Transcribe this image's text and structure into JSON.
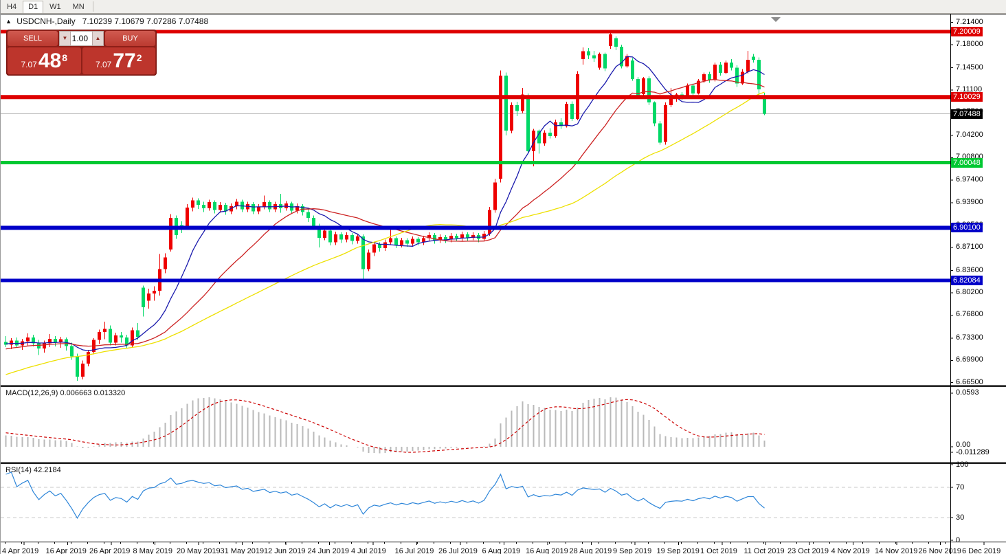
{
  "toolbar": {
    "timeframes": [
      {
        "id": "h4",
        "label": "H4",
        "active": false
      },
      {
        "id": "d1",
        "label": "D1",
        "active": true
      },
      {
        "id": "w1",
        "label": "W1",
        "active": false
      },
      {
        "id": "mn",
        "label": "MN",
        "active": false
      }
    ]
  },
  "chart": {
    "title_symbol": "USDCNH-,Daily",
    "title_ohlc": "7.10239 7.10679 7.07286 7.07488",
    "trade_panel": {
      "sell_label": "SELL",
      "buy_label": "BUY",
      "volume": "1.00",
      "down_arrow": "▼",
      "up_arrow": "▲",
      "sell_price_small": "7.07",
      "sell_price_big": "48",
      "sell_price_sup": "8",
      "buy_price_small": "7.07",
      "buy_price_big": "77",
      "buy_price_sup": "2"
    },
    "axis_ticks": [
      "7.21400",
      "7.18000",
      "7.14500",
      "7.11100",
      "7.07700",
      "7.04200",
      "7.00800",
      "6.97400",
      "6.93900",
      "6.90500",
      "6.87100",
      "6.83600",
      "6.80200",
      "6.76800",
      "6.73300",
      "6.69900",
      "6.66500"
    ],
    "hlines": [
      {
        "label": "7.20009",
        "price": 7.20009,
        "color": "#de0000",
        "thickness": 5
      },
      {
        "label": "7.10029",
        "price": 7.10029,
        "color": "#de0000",
        "thickness": 6
      },
      {
        "label": "7.00048",
        "price": 7.00048,
        "color": "#00c832",
        "thickness": 5
      },
      {
        "label": "6.90100",
        "price": 6.901,
        "color": "#0000c8",
        "thickness": 6
      },
      {
        "label": "6.82084",
        "price": 6.82084,
        "color": "#0000c8",
        "thickness": 5
      }
    ],
    "current_price": {
      "label": "7.07488",
      "price": 7.07488
    },
    "time_labels": [
      "4 Apr 2019",
      "16 Apr 2019",
      "26 Apr 2019",
      "8 May 2019",
      "20 May 2019",
      "31 May 2019",
      "12 Jun 2019",
      "24 Jun 2019",
      "4 Jul 2019",
      "16 Jul 2019",
      "26 Jul 2019",
      "6 Aug 2019",
      "16 Aug 2019",
      "28 Aug 2019",
      "9 Sep 2019",
      "19 Sep 2019",
      "1 Oct 2019",
      "11 Oct 2019",
      "23 Oct 2019",
      "4 Nov 2019",
      "14 Nov 2019",
      "26 Nov 2019",
      "6 Dec 2019"
    ]
  },
  "macd": {
    "label": "MACD(12,26,9) 0.006663 0.013320",
    "axis": [
      "0.0593",
      "0.00",
      "-0.011289"
    ]
  },
  "rsi": {
    "label": "RSI(14) 42.2184",
    "axis": [
      "100",
      "70",
      "30",
      "0"
    ]
  },
  "colors": {
    "bull_candle": "#ee0000",
    "bear_candle": "#00d866",
    "ma_fast": "#1a1aad",
    "ma_mid": "#cc2222",
    "ma_slow": "#ede000",
    "macd_hist": "#b9b9b9",
    "macd_signal": "#cc0000",
    "rsi_line": "#2e86d9",
    "level_dash": "#c8c8c8",
    "current_line": "#b8b8b8",
    "badge_black": "#000000"
  },
  "chart_data": {
    "type": "candlestick",
    "symbol": "USDCNH-",
    "period": "Daily",
    "last_ohlc": {
      "open": 7.10239,
      "high": 7.10679,
      "low": 7.07286,
      "close": 7.07488
    },
    "price_axis": {
      "min": 6.665,
      "max": 7.214,
      "tick_step": 0.034
    },
    "levels": [
      7.20009,
      7.10029,
      7.07488,
      7.00048,
      6.901,
      6.82084
    ],
    "indicators": {
      "macd": {
        "params": [
          12,
          26,
          9
        ],
        "value": 0.006663,
        "signal": 0.01332,
        "axis_max": 0.0593,
        "axis_min": -0.011289
      },
      "rsi": {
        "params": [
          14
        ],
        "value": 42.2184,
        "levels": [
          70,
          30
        ],
        "range": [
          0,
          100
        ]
      },
      "moving_averages": [
        {
          "period": 10,
          "color_key": "ma_fast"
        },
        {
          "period": 25,
          "color_key": "ma_mid"
        },
        {
          "period": 50,
          "color_key": "ma_slow"
        }
      ]
    },
    "warmup_closes": [
      6.585,
      6.59,
      6.594,
      6.598,
      6.602,
      6.606,
      6.61,
      6.614,
      6.618,
      6.622,
      6.626,
      6.63,
      6.634,
      6.638,
      6.642,
      6.646,
      6.65,
      6.654,
      6.658,
      6.662,
      6.666,
      6.67,
      6.674,
      6.678,
      6.682,
      6.69,
      6.694,
      6.698,
      6.701,
      6.704,
      6.706,
      6.709,
      6.711,
      6.713,
      6.715,
      6.716,
      6.718,
      6.719,
      6.72,
      6.721,
      6.722,
      6.722,
      6.723,
      6.723,
      6.724,
      6.724,
      6.725,
      6.725,
      6.726,
      6.726
    ],
    "candles": [
      [
        6.727,
        6.736,
        6.719,
        6.723
      ],
      [
        6.723,
        6.733,
        6.716,
        6.729
      ],
      [
        6.729,
        6.734,
        6.718,
        6.722
      ],
      [
        6.722,
        6.732,
        6.715,
        6.728
      ],
      [
        6.728,
        6.74,
        6.722,
        6.734
      ],
      [
        6.734,
        6.738,
        6.72,
        6.725
      ],
      [
        6.725,
        6.73,
        6.707,
        6.717
      ],
      [
        6.717,
        6.729,
        6.711,
        6.725
      ],
      [
        6.725,
        6.739,
        6.719,
        6.732
      ],
      [
        6.732,
        6.736,
        6.72,
        6.726
      ],
      [
        6.726,
        6.735,
        6.718,
        6.731
      ],
      [
        6.731,
        6.734,
        6.714,
        6.721
      ],
      [
        6.721,
        6.726,
        6.7,
        6.705
      ],
      [
        6.705,
        6.709,
        6.668,
        6.674
      ],
      [
        6.674,
        6.699,
        6.67,
        6.694
      ],
      [
        6.694,
        6.715,
        6.69,
        6.712
      ],
      [
        6.712,
        6.733,
        6.708,
        6.73
      ],
      [
        6.73,
        6.746,
        6.724,
        6.742
      ],
      [
        6.742,
        6.758,
        6.731,
        6.747
      ],
      [
        6.747,
        6.752,
        6.722,
        6.726
      ],
      [
        6.726,
        6.741,
        6.722,
        6.737
      ],
      [
        6.737,
        6.742,
        6.726,
        6.734
      ],
      [
        6.734,
        6.738,
        6.718,
        6.722
      ],
      [
        6.722,
        6.749,
        6.718,
        6.745
      ],
      [
        6.745,
        6.756,
        6.73,
        6.735
      ],
      [
        6.81,
        6.813,
        6.766,
        6.78
      ],
      [
        6.79,
        6.808,
        6.778,
        6.801
      ],
      [
        6.801,
        6.812,
        6.79,
        6.805
      ],
      [
        6.805,
        6.861,
        6.798,
        6.838
      ],
      [
        6.838,
        6.862,
        6.832,
        6.856
      ],
      [
        6.868,
        6.922,
        6.865,
        6.916
      ],
      [
        6.916,
        6.92,
        6.884,
        6.89
      ],
      [
        6.905,
        6.911,
        6.893,
        6.901
      ],
      [
        6.901,
        6.937,
        6.898,
        6.932
      ],
      [
        6.932,
        6.947,
        6.926,
        6.943
      ],
      [
        6.943,
        6.946,
        6.93,
        6.936
      ],
      [
        6.936,
        6.941,
        6.925,
        6.931
      ],
      [
        6.931,
        6.944,
        6.927,
        6.94
      ],
      [
        6.94,
        6.943,
        6.923,
        6.928
      ],
      [
        6.928,
        6.94,
        6.924,
        6.936
      ],
      [
        6.936,
        6.939,
        6.921,
        6.926
      ],
      [
        6.926,
        6.938,
        6.922,
        6.934
      ],
      [
        6.934,
        6.945,
        6.929,
        6.941
      ],
      [
        6.941,
        6.944,
        6.925,
        6.929
      ],
      [
        6.929,
        6.941,
        6.925,
        6.937
      ],
      [
        6.937,
        6.94,
        6.922,
        6.926
      ],
      [
        6.926,
        6.937,
        6.922,
        6.933
      ],
      [
        6.933,
        6.95,
        6.929,
        6.94
      ],
      [
        6.94,
        6.943,
        6.925,
        6.929
      ],
      [
        6.929,
        6.941,
        6.925,
        6.937
      ],
      [
        6.937,
        6.953,
        6.924,
        6.931
      ],
      [
        6.931,
        6.942,
        6.927,
        6.938
      ],
      [
        6.938,
        6.941,
        6.923,
        6.927
      ],
      [
        6.927,
        6.938,
        6.923,
        6.934
      ],
      [
        6.934,
        6.937,
        6.92,
        6.925
      ],
      [
        6.925,
        6.929,
        6.91,
        6.916
      ],
      [
        6.916,
        6.92,
        6.898,
        6.903
      ],
      [
        6.903,
        6.907,
        6.871,
        6.886
      ],
      [
        6.886,
        6.901,
        6.882,
        6.897
      ],
      [
        6.897,
        6.9,
        6.874,
        6.879
      ],
      [
        6.879,
        6.895,
        6.875,
        6.891
      ],
      [
        6.891,
        6.894,
        6.878,
        6.883
      ],
      [
        6.883,
        6.894,
        6.879,
        6.89
      ],
      [
        6.89,
        6.893,
        6.876,
        6.881
      ],
      [
        6.881,
        6.892,
        6.877,
        6.888
      ],
      [
        6.888,
        6.891,
        6.822,
        6.838
      ],
      [
        6.838,
        6.868,
        6.835,
        6.863
      ],
      [
        6.863,
        6.88,
        6.858,
        6.876
      ],
      [
        6.876,
        6.879,
        6.865,
        6.87
      ],
      [
        6.87,
        6.883,
        6.866,
        6.879
      ],
      [
        6.879,
        6.899,
        6.875,
        6.885
      ],
      [
        6.885,
        6.888,
        6.87,
        6.875
      ],
      [
        6.875,
        6.886,
        6.871,
        6.882
      ],
      [
        6.882,
        6.885,
        6.872,
        6.877
      ],
      [
        6.877,
        6.888,
        6.873,
        6.884
      ],
      [
        6.884,
        6.887,
        6.874,
        6.879
      ],
      [
        6.879,
        6.889,
        6.875,
        6.885
      ],
      [
        6.885,
        6.894,
        6.881,
        6.89
      ],
      [
        6.89,
        6.893,
        6.877,
        6.882
      ],
      [
        6.882,
        6.891,
        6.878,
        6.887
      ],
      [
        6.887,
        6.89,
        6.878,
        6.883
      ],
      [
        6.883,
        6.893,
        6.879,
        6.889
      ],
      [
        6.889,
        6.892,
        6.88,
        6.885
      ],
      [
        6.885,
        6.895,
        6.881,
        6.891
      ],
      [
        6.891,
        6.894,
        6.881,
        6.886
      ],
      [
        6.886,
        6.894,
        6.882,
        6.89
      ],
      [
        6.89,
        6.893,
        6.879,
        6.884
      ],
      [
        6.884,
        6.896,
        6.881,
        6.892
      ],
      [
        6.892,
        6.933,
        6.889,
        6.928
      ],
      [
        6.928,
        6.976,
        6.924,
        6.97
      ],
      [
        6.976,
        7.141,
        6.97,
        7.133
      ],
      [
        7.133,
        7.138,
        7.042,
        7.049
      ],
      [
        7.049,
        7.092,
        7.045,
        7.088
      ],
      [
        7.088,
        7.093,
        7.071,
        7.079
      ],
      [
        7.079,
        7.114,
        7.076,
        7.104
      ],
      [
        7.102,
        7.106,
        7.016,
        7.018
      ],
      [
        7.018,
        7.052,
        6.995,
        7.049
      ],
      [
        7.049,
        7.051,
        7.014,
        7.03
      ],
      [
        7.03,
        7.05,
        7.026,
        7.046
      ],
      [
        7.046,
        7.053,
        7.037,
        7.041
      ],
      [
        7.041,
        7.066,
        7.038,
        7.062
      ],
      [
        7.062,
        7.068,
        7.052,
        7.056
      ],
      [
        7.056,
        7.093,
        7.054,
        7.09
      ],
      [
        7.09,
        7.094,
        7.064,
        7.067
      ],
      [
        7.067,
        7.14,
        7.065,
        7.135
      ],
      [
        7.158,
        7.176,
        7.15,
        7.17
      ],
      [
        7.17,
        7.175,
        7.158,
        7.164
      ],
      [
        7.164,
        7.171,
        7.154,
        7.159
      ],
      [
        7.145,
        7.168,
        7.142,
        7.166
      ],
      [
        7.166,
        7.168,
        7.14,
        7.144
      ],
      [
        7.178,
        7.198,
        7.174,
        7.196
      ],
      [
        7.19,
        7.193,
        7.172,
        7.177
      ],
      [
        7.177,
        7.18,
        7.144,
        7.147
      ],
      [
        7.147,
        7.166,
        7.145,
        7.163
      ],
      [
        7.156,
        7.16,
        7.125,
        7.128
      ],
      [
        7.128,
        7.131,
        7.098,
        7.103
      ],
      [
        7.105,
        7.131,
        7.102,
        7.129
      ],
      [
        7.129,
        7.132,
        7.088,
        7.092
      ],
      [
        7.092,
        7.094,
        7.056,
        7.06
      ],
      [
        7.06,
        7.064,
        7.028,
        7.031
      ],
      [
        7.032,
        7.092,
        7.028,
        7.088
      ],
      [
        7.088,
        7.114,
        7.085,
        7.098
      ],
      [
        7.098,
        7.107,
        7.093,
        7.104
      ],
      [
        7.104,
        7.108,
        7.096,
        7.1
      ],
      [
        7.1,
        7.121,
        7.098,
        7.118
      ],
      [
        7.118,
        7.121,
        7.103,
        7.106
      ],
      [
        7.106,
        7.128,
        7.104,
        7.125
      ],
      [
        7.125,
        7.138,
        7.122,
        7.135
      ],
      [
        7.135,
        7.139,
        7.122,
        7.126
      ],
      [
        7.126,
        7.153,
        7.124,
        7.15
      ],
      [
        7.15,
        7.154,
        7.133,
        7.137
      ],
      [
        7.137,
        7.156,
        7.135,
        7.153
      ],
      [
        7.153,
        7.158,
        7.141,
        7.145
      ],
      [
        7.145,
        7.149,
        7.116,
        7.121
      ],
      [
        7.121,
        7.143,
        7.119,
        7.139
      ],
      [
        7.139,
        7.171,
        7.136,
        7.157
      ],
      [
        7.162,
        7.166,
        7.153,
        7.157
      ],
      [
        7.157,
        7.161,
        7.102,
        7.112
      ],
      [
        7.10239,
        7.10679,
        7.07286,
        7.07488
      ]
    ]
  }
}
